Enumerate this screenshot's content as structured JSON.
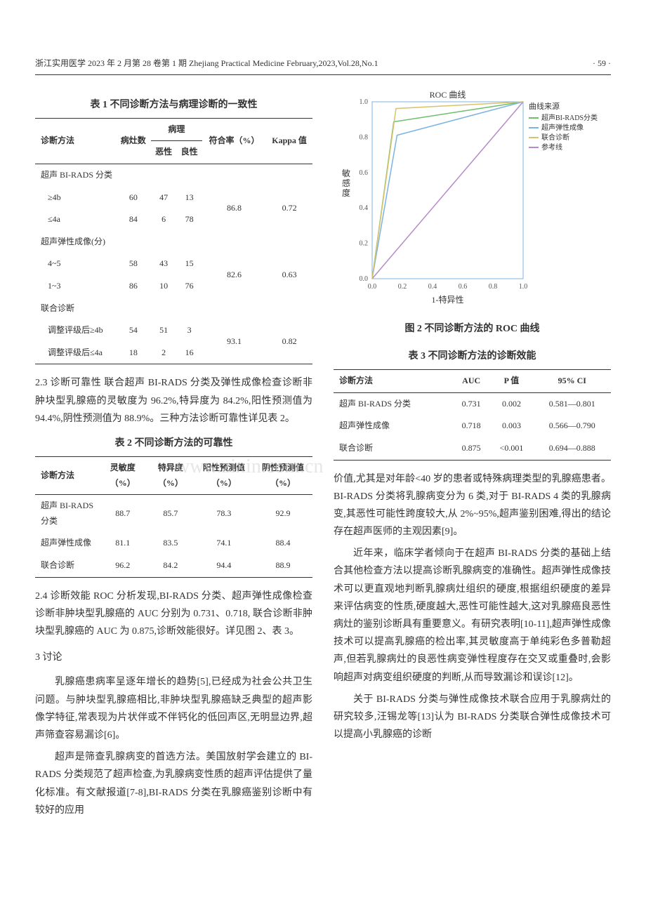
{
  "header": {
    "journal_info": "浙江实用医学 2023 年 2 月第 28 卷第 1 期   Zhejiang Practical Medicine February,2023,Vol.28,No.1",
    "page_number": "· 59 ·"
  },
  "table1": {
    "caption": "表 1  不同诊断方法与病理诊断的一致性",
    "headers": {
      "method": "诊断方法",
      "lesions": "病灶数",
      "pathology": "病理",
      "malignant": "恶性",
      "benign": "良性",
      "rate": "符合率（%）",
      "kappa": "Kappa 值"
    },
    "sections": [
      {
        "group": "超声 BI-RADS 分类",
        "rows": [
          {
            "label": "≥4b",
            "n": "60",
            "mal": "47",
            "ben": "13"
          },
          {
            "label": "≤4a",
            "n": "84",
            "mal": "6",
            "ben": "78"
          }
        ],
        "rate": "86.8",
        "kappa": "0.72"
      },
      {
        "group": "超声弹性成像(分)",
        "rows": [
          {
            "label": "4~5",
            "n": "58",
            "mal": "43",
            "ben": "15"
          },
          {
            "label": "1~3",
            "n": "86",
            "mal": "10",
            "ben": "76"
          }
        ],
        "rate": "82.6",
        "kappa": "0.63"
      },
      {
        "group": "联合诊断",
        "rows": [
          {
            "label": "调整评级后≥4b",
            "n": "54",
            "mal": "51",
            "ben": "3"
          },
          {
            "label": "调整评级后≤4a",
            "n": "18",
            "mal": "2",
            "ben": "16"
          }
        ],
        "rate": "93.1",
        "kappa": "0.82"
      }
    ]
  },
  "p23": "2.3  诊断可靠性  联合超声 BI-RADS 分类及弹性成像检查诊断非肿块型乳腺癌的灵敏度为 96.2%,特异度为 84.2%,阳性预测值为94.4%,阴性预测值为 88.9%。三种方法诊断可靠性详见表 2。",
  "table2": {
    "caption": "表 2  不同诊断方法的可靠性",
    "headers": {
      "method": "诊断方法",
      "sens": "灵敏度（%）",
      "spec": "特异度（%）",
      "ppv": "阳性预测值（%）",
      "npv": "阴性预测值（%）"
    },
    "rows": [
      {
        "method": "超声 BI-RADS 分类",
        "sens": "88.7",
        "spec": "85.7",
        "ppv": "78.3",
        "npv": "92.9"
      },
      {
        "method": "超声弹性成像",
        "sens": "81.1",
        "spec": "83.5",
        "ppv": "74.1",
        "npv": "88.4"
      },
      {
        "method": "联合诊断",
        "sens": "96.2",
        "spec": "84.2",
        "ppv": "94.4",
        "npv": "88.9"
      }
    ]
  },
  "p24": "2.4  诊断效能  ROC 分析发现,BI-RADS 分类、超声弹性成像检查诊断非肿块型乳腺癌的 AUC 分别为 0.731、0.718, 联合诊断非肿块型乳腺癌的 AUC 为 0.875,诊断效能很好。详见图 2、表 3。",
  "sec3_title": "3  讨论",
  "p3a": "乳腺癌患病率呈逐年增长的趋势[5],已经成为社会公共卫生问题。与肿块型乳腺癌相比,非肿块型乳腺癌缺乏典型的超声影像学特征,常表现为片状伴或不伴钙化的低回声区,无明显边界,超声筛查容易漏诊[6]。",
  "p3b": "超声是筛查乳腺病变的首选方法。美国放射学会建立的 BI-RADS 分类规范了超声检查,为乳腺病变性质的超声评估提供了量化标准。有文献报道[7-8],BI-RADS 分类在乳腺癌鉴别诊断中有较好的应用",
  "roc_chart": {
    "title": "ROC 曲线",
    "legend_title": "曲线来源",
    "legend": [
      {
        "label": "超声BI-RADS分类",
        "color": "#6bbf6b"
      },
      {
        "label": "超声弹性成像",
        "color": "#7db3e0"
      },
      {
        "label": "联合诊断",
        "color": "#d9c26b"
      },
      {
        "label": "参考线",
        "color": "#b58bc9"
      }
    ],
    "xlabel": "1-特异性",
    "ylabel": "敏感度",
    "xlim": [
      0,
      1
    ],
    "ylim": [
      0,
      1
    ],
    "xticks": [
      "0.0",
      "0.2",
      "0.4",
      "0.6",
      "0.8",
      "1.0"
    ],
    "yticks": [
      "0.0",
      "0.2",
      "0.4",
      "0.6",
      "0.8",
      "1.0"
    ],
    "axis_color": "#7db3e0",
    "grid_color": "#ffffff",
    "background_color": "#ffffff",
    "series": {
      "birads": [
        [
          0,
          0
        ],
        [
          0.143,
          0.887
        ],
        [
          1,
          1
        ]
      ],
      "elasto": [
        [
          0,
          0
        ],
        [
          0.165,
          0.811
        ],
        [
          1,
          1
        ]
      ],
      "combined": [
        [
          0,
          0
        ],
        [
          0.158,
          0.962
        ],
        [
          1,
          1
        ]
      ],
      "ref": [
        [
          0,
          0
        ],
        [
          1,
          1
        ]
      ]
    }
  },
  "fig2_caption": "图 2  不同诊断方法的 ROC 曲线",
  "table3": {
    "caption": "表 3  不同诊断方法的诊断效能",
    "headers": {
      "method": "诊断方法",
      "auc": "AUC",
      "p": "P 值",
      "ci": "95% CI"
    },
    "rows": [
      {
        "method": "超声 BI-RADS 分类",
        "auc": "0.731",
        "p": "0.002",
        "ci": "0.581—0.801"
      },
      {
        "method": "超声弹性成像",
        "auc": "0.718",
        "p": "0.003",
        "ci": "0.566—0.790"
      },
      {
        "method": "联合诊断",
        "auc": "0.875",
        "p": "<0.001",
        "ci": "0.694—0.888"
      }
    ]
  },
  "pR1": "价值,尤其是对年龄<40 岁的患者或特殊病理类型的乳腺癌患者。BI-RADS 分类将乳腺病变分为 6 类,对于 BI-RADS 4 类的乳腺病变,其恶性可能性跨度较大,从 2%~95%,超声鉴别困难,得出的结论存在超声医师的主观因素[9]。",
  "pR2": "近年来，临床学者倾向于在超声 BI-RADS 分类的基础上结合其他检查方法以提高诊断乳腺病变的准确性。超声弹性成像技术可以更直观地判断乳腺病灶组织的硬度,根据组织硬度的差异来评估病变的性质,硬度越大,恶性可能性越大,这对乳腺癌良恶性病灶的鉴别诊断具有重要意义。有研究表明[10-11],超声弹性成像技术可以提高乳腺癌的检出率,其灵敏度高于单纯彩色多普勒超声,但若乳腺病灶的良恶性病变弹性程度存在交叉或重叠时,会影响超声对病变组织硬度的判断,从而导致漏诊和误诊[12]。",
  "pR3": "关于 BI-RADS 分类与弹性成像技术联合应用于乳腺病灶的研究较多,汪锡龙等[13]认为 BI-RADS 分类联合弹性成像技术可以提高小乳腺癌的诊断",
  "watermark": "www.zixin.com.cn"
}
